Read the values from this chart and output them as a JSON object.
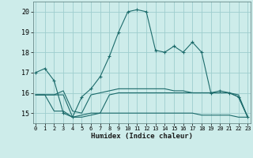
{
  "xlabel": "Humidex (Indice chaleur)",
  "bg_color": "#cdecea",
  "grid_color": "#9ecece",
  "line_color": "#1c6b6b",
  "x_ticks": [
    0,
    1,
    2,
    3,
    4,
    5,
    6,
    7,
    8,
    9,
    10,
    11,
    12,
    13,
    14,
    15,
    16,
    17,
    18,
    19,
    20,
    21,
    22,
    23
  ],
  "y_ticks": [
    15,
    16,
    17,
    18,
    19,
    20
  ],
  "ylim": [
    14.5,
    20.5
  ],
  "xlim": [
    -0.3,
    23.3
  ],
  "series": [
    [
      17.0,
      17.2,
      16.6,
      15.0,
      14.8,
      15.8,
      16.2,
      16.8,
      17.8,
      19.0,
      20.0,
      20.1,
      20.0,
      18.1,
      18.0,
      18.3,
      18.0,
      18.5,
      18.0,
      16.0,
      16.1,
      16.0,
      15.8,
      14.8
    ],
    [
      15.9,
      15.9,
      15.9,
      16.1,
      15.1,
      15.0,
      15.9,
      16.0,
      16.1,
      16.2,
      16.2,
      16.2,
      16.2,
      16.2,
      16.2,
      16.1,
      16.1,
      16.0,
      16.0,
      16.0,
      16.0,
      16.0,
      15.9,
      14.8
    ],
    [
      15.9,
      15.9,
      15.9,
      15.9,
      14.8,
      14.9,
      15.0,
      15.0,
      15.9,
      16.0,
      16.0,
      16.0,
      16.0,
      16.0,
      16.0,
      16.0,
      16.0,
      16.0,
      16.0,
      16.0,
      16.0,
      16.0,
      15.8,
      14.8
    ],
    [
      15.9,
      15.9,
      15.1,
      15.1,
      14.8,
      14.8,
      14.9,
      15.0,
      15.0,
      15.0,
      15.0,
      15.0,
      15.0,
      15.0,
      15.0,
      15.0,
      15.0,
      15.0,
      14.9,
      14.9,
      14.9,
      14.9,
      14.8,
      14.8
    ]
  ],
  "marker_indices": [
    0,
    1,
    2,
    3,
    4,
    5,
    6,
    7,
    8,
    9,
    10,
    11,
    12,
    13,
    14,
    15,
    16,
    17,
    18,
    19,
    20,
    21,
    22,
    23
  ]
}
